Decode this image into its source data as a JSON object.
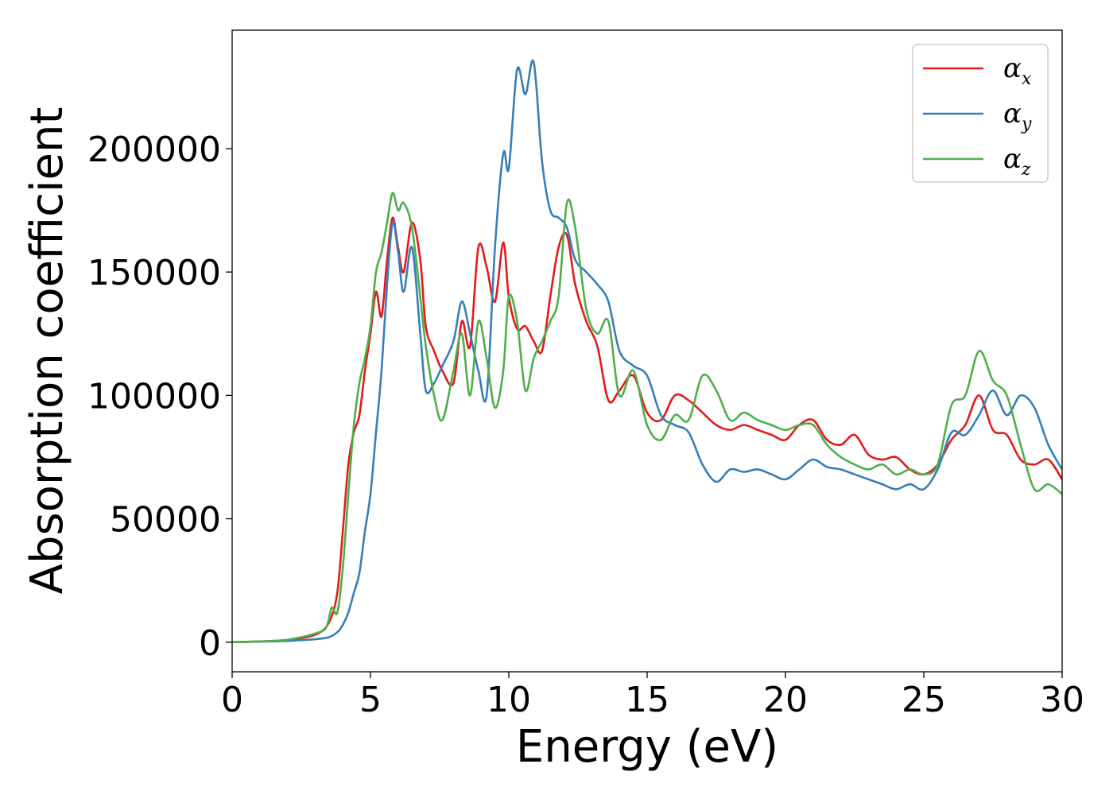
{
  "chart_data": {
    "type": "line",
    "title": "",
    "xlabel": "Energy (eV)",
    "ylabel": "Absorption coefficient",
    "xlim": [
      0,
      30
    ],
    "ylim": [
      -12000,
      248000
    ],
    "xticks": [
      0,
      5,
      10,
      15,
      20,
      25,
      30
    ],
    "yticks": [
      0,
      50000,
      100000,
      150000,
      200000
    ],
    "grid": false,
    "legend_position": "top-right",
    "series": [
      {
        "name": "α",
        "subscript": "x",
        "color": "#e41a1c",
        "x": [
          0,
          1,
          2,
          3,
          3.5,
          3.8,
          4.0,
          4.2,
          4.4,
          4.6,
          4.8,
          5.0,
          5.2,
          5.4,
          5.6,
          5.8,
          6.0,
          6.2,
          6.5,
          6.8,
          7.0,
          7.3,
          7.6,
          8.0,
          8.3,
          8.6,
          8.9,
          9.2,
          9.5,
          9.8,
          10.0,
          10.3,
          10.6,
          10.9,
          11.2,
          11.5,
          11.8,
          12.1,
          12.4,
          12.8,
          13.2,
          13.6,
          14.0,
          14.5,
          15.0,
          15.5,
          16.0,
          16.5,
          17.0,
          17.5,
          18.0,
          18.5,
          19.0,
          19.5,
          20.0,
          20.5,
          21.0,
          21.5,
          22.0,
          22.5,
          23.0,
          23.5,
          24.0,
          24.5,
          25.0,
          25.5,
          26.0,
          26.5,
          27.0,
          27.5,
          28.0,
          28.5,
          29.0,
          29.5,
          30.0
        ],
        "y": [
          0,
          300,
          900,
          3000,
          8000,
          20000,
          45000,
          72000,
          85000,
          92000,
          110000,
          125000,
          142000,
          132000,
          155000,
          172000,
          160000,
          150000,
          170000,
          155000,
          128000,
          118000,
          110000,
          105000,
          130000,
          120000,
          160000,
          152000,
          138000,
          162000,
          140000,
          127000,
          128000,
          122000,
          118000,
          140000,
          160000,
          165000,
          145000,
          130000,
          120000,
          98000,
          102000,
          108000,
          93000,
          90000,
          100000,
          98000,
          93000,
          88000,
          86000,
          88000,
          86000,
          84000,
          82000,
          88000,
          90000,
          82000,
          80000,
          84000,
          76000,
          74000,
          75000,
          70000,
          68000,
          72000,
          82000,
          88000,
          100000,
          86000,
          84000,
          74000,
          72000,
          74000,
          66000
        ]
      },
      {
        "name": "α",
        "subscript": "y",
        "color": "#377eb8",
        "x": [
          0,
          1,
          2,
          3,
          3.5,
          3.8,
          4.0,
          4.2,
          4.4,
          4.6,
          4.8,
          5.0,
          5.2,
          5.4,
          5.6,
          5.8,
          6.0,
          6.2,
          6.5,
          6.8,
          7.0,
          7.3,
          7.6,
          8.0,
          8.3,
          8.6,
          8.9,
          9.2,
          9.5,
          9.8,
          10.0,
          10.3,
          10.6,
          10.9,
          11.2,
          11.5,
          11.8,
          12.1,
          12.4,
          12.8,
          13.2,
          13.6,
          14.0,
          14.5,
          15.0,
          15.5,
          16.0,
          16.5,
          17.0,
          17.5,
          18.0,
          18.5,
          19.0,
          19.5,
          20.0,
          20.5,
          21.0,
          21.5,
          22.0,
          22.5,
          23.0,
          23.5,
          24.0,
          24.5,
          25.0,
          25.5,
          26.0,
          26.5,
          27.0,
          27.5,
          28.0,
          28.5,
          29.0,
          29.5,
          30.0
        ],
        "y": [
          0,
          200,
          500,
          1200,
          2000,
          4000,
          7000,
          12000,
          20000,
          28000,
          45000,
          60000,
          85000,
          110000,
          145000,
          170000,
          158000,
          142000,
          160000,
          125000,
          102000,
          105000,
          112000,
          122000,
          138000,
          125000,
          110000,
          100000,
          160000,
          198000,
          192000,
          232000,
          222000,
          235000,
          195000,
          175000,
          172000,
          168000,
          155000,
          150000,
          145000,
          138000,
          118000,
          112000,
          108000,
          92000,
          88000,
          85000,
          72000,
          65000,
          70000,
          69000,
          70000,
          68000,
          66000,
          70000,
          74000,
          71000,
          70000,
          68000,
          66000,
          64000,
          62000,
          64000,
          62000,
          70000,
          85000,
          84000,
          92000,
          102000,
          92000,
          100000,
          95000,
          80000,
          70000
        ]
      },
      {
        "name": "α",
        "subscript": "z",
        "color": "#4daf4a",
        "x": [
          0,
          1,
          2,
          3,
          3.4,
          3.6,
          3.8,
          4.0,
          4.2,
          4.4,
          4.6,
          4.8,
          5.0,
          5.2,
          5.4,
          5.6,
          5.8,
          6.0,
          6.2,
          6.5,
          6.8,
          7.0,
          7.3,
          7.6,
          8.0,
          8.3,
          8.6,
          8.9,
          9.2,
          9.5,
          9.8,
          10.0,
          10.3,
          10.6,
          10.9,
          11.2,
          11.5,
          11.8,
          12.1,
          12.4,
          12.8,
          13.2,
          13.6,
          14.0,
          14.5,
          15.0,
          15.5,
          16.0,
          16.5,
          17.0,
          17.5,
          18.0,
          18.5,
          19.0,
          19.5,
          20.0,
          20.5,
          21.0,
          21.5,
          22.0,
          22.5,
          23.0,
          23.5,
          24.0,
          24.5,
          25.0,
          25.5,
          26.0,
          26.5,
          27.0,
          27.5,
          28.0,
          28.5,
          29.0,
          29.5,
          30.0
        ],
        "y": [
          0,
          300,
          1000,
          3500,
          6000,
          14000,
          12000,
          30000,
          60000,
          88000,
          105000,
          115000,
          128000,
          150000,
          158000,
          170000,
          182000,
          175000,
          178000,
          168000,
          140000,
          120000,
          100000,
          90000,
          110000,
          125000,
          100000,
          130000,
          115000,
          95000,
          110000,
          140000,
          130000,
          102000,
          115000,
          122000,
          130000,
          140000,
          178000,
          168000,
          135000,
          125000,
          130000,
          100000,
          110000,
          88000,
          82000,
          92000,
          90000,
          108000,
          102000,
          90000,
          93000,
          90000,
          88000,
          86000,
          88000,
          88000,
          80000,
          75000,
          72000,
          70000,
          72000,
          68000,
          70000,
          68000,
          72000,
          96000,
          100000,
          118000,
          106000,
          100000,
          80000,
          62000,
          64000,
          60000
        ]
      }
    ]
  }
}
